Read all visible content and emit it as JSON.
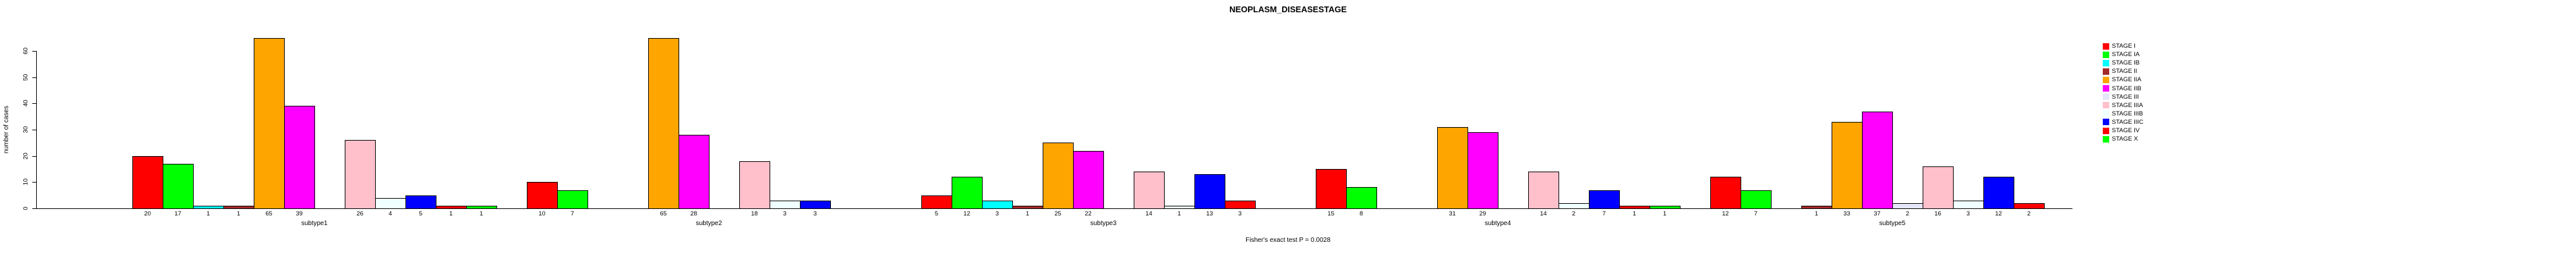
{
  "title": "NEOPLASM_DISEASESTAGE",
  "footer": "Fisher's exact test P = 0.0028",
  "chart_data": {
    "type": "bar",
    "title": "NEOPLASM_DISEASESTAGE",
    "xlabel": "",
    "ylabel": "number of cases",
    "ylim": [
      0,
      60
    ],
    "y_ticks": [
      0,
      10,
      20,
      30,
      40,
      50,
      60
    ],
    "grid": false,
    "legend_position": "right",
    "annotation": "Fisher's exact test P = 0.0028",
    "categories": [
      "subtype1",
      "subtype2",
      "subtype3",
      "subtype4",
      "subtype5"
    ],
    "series": [
      {
        "name": "STAGE I",
        "color": "#FF0000",
        "values": [
          20,
          10,
          5,
          15,
          12
        ]
      },
      {
        "name": "STAGE IA",
        "color": "#00FF00",
        "values": [
          17,
          7,
          12,
          8,
          7
        ]
      },
      {
        "name": "STAGE IB",
        "color": "#00FFFF",
        "values": [
          1,
          0,
          3,
          0,
          0
        ]
      },
      {
        "name": "STAGE II",
        "color": "#A52A2A",
        "values": [
          1,
          0,
          1,
          0,
          1
        ]
      },
      {
        "name": "STAGE IIA",
        "color": "#FFA500",
        "values": [
          65,
          65,
          25,
          31,
          33
        ]
      },
      {
        "name": "STAGE IIB",
        "color": "#FF00FF",
        "values": [
          39,
          28,
          22,
          29,
          37
        ]
      },
      {
        "name": "STAGE III",
        "color": "#E6E6FA",
        "values": [
          0,
          0,
          0,
          0,
          2
        ]
      },
      {
        "name": "STAGE IIIA",
        "color": "#FFC0CB",
        "values": [
          26,
          18,
          14,
          14,
          16
        ]
      },
      {
        "name": "STAGE IIIB",
        "color": "#F0FFFF",
        "values": [
          4,
          3,
          1,
          2,
          3
        ]
      },
      {
        "name": "STAGE IIIC",
        "color": "#0000FF",
        "values": [
          5,
          3,
          13,
          7,
          12
        ]
      },
      {
        "name": "STAGE IV",
        "color": "#FF0000",
        "values": [
          1,
          0,
          3,
          1,
          2
        ]
      },
      {
        "name": "STAGE X",
        "color": "#00FF00",
        "values": [
          1,
          0,
          0,
          1,
          0
        ]
      }
    ],
    "value_labels": "shown below axis only for bars greater than zero"
  }
}
